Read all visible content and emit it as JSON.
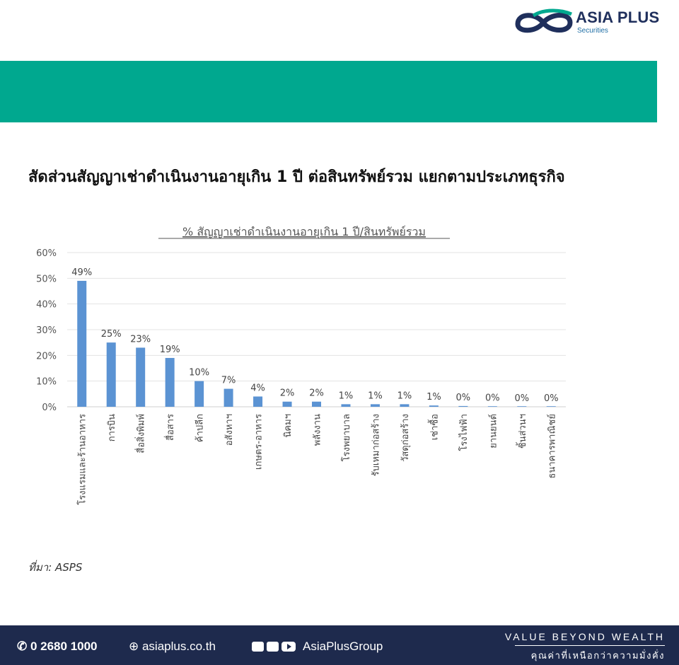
{
  "brand": {
    "name": "ASIA PLUS",
    "sub": "Securities",
    "logo_colors": [
      "#1f2f5c",
      "#00a88f"
    ]
  },
  "banner_color": "#00a88f",
  "heading": "สัดส่วนสัญญาเช่าดำเนินงานอายุเกิน 1 ปี ต่อสินทรัพย์รวม แยกตามประเภทธุรกิจ",
  "chart_data": {
    "type": "bar",
    "title": "% สัญญาเช่าดำเนินงานอายุเกิน 1 ปี/สินทรัพย์รวม",
    "categories": [
      "โรงแรมและร้านอาหาร",
      "การบิน",
      "สื่อสิ่งพิมพ์",
      "สื่อสาร",
      "ค้าปลีก",
      "อสังหาฯ",
      "เกษตร-อาหาร",
      "นิคมฯ",
      "พลังงาน",
      "โรงพยาบาล",
      "รับเหมาก่อสร้าง",
      "วัสดุก่อสร้าง",
      "เช่าซื้อ",
      "โรงไฟฟ้า",
      "ยานยนต์",
      "ชิ้นส่วนฯ",
      "ธนาคารพาณิชย์"
    ],
    "values": [
      49,
      25,
      23,
      19,
      10,
      7,
      4,
      2,
      2,
      1,
      1,
      1,
      0.5,
      0.3,
      0.1,
      0.05,
      0
    ],
    "data_labels": [
      "49%",
      "25%",
      "23%",
      "19%",
      "10%",
      "7%",
      "4%",
      "2%",
      "2%",
      "1%",
      "1%",
      "1%",
      "1%",
      "0%",
      "0%",
      "0%",
      "0%"
    ],
    "y_ticks": [
      "0%",
      "10%",
      "20%",
      "30%",
      "40%",
      "50%",
      "60%"
    ],
    "ylim": [
      0,
      60
    ],
    "grid": true,
    "legend": "none",
    "bar_color": "#5b93d3"
  },
  "source": "ที่มา: ASPS",
  "footer": {
    "phone": "0 2680 1000",
    "website": "asiaplus.co.th",
    "social_handle": "AsiaPlusGroup",
    "tagline": "VALUE BEYOND WEALTH",
    "tagline_th": "คุณค่าที่เหนือกว่าความมั่งคั่ง",
    "icons": [
      "phone-icon",
      "globe-icon",
      "facebook-icon",
      "twitter-icon",
      "youtube-icon"
    ]
  }
}
